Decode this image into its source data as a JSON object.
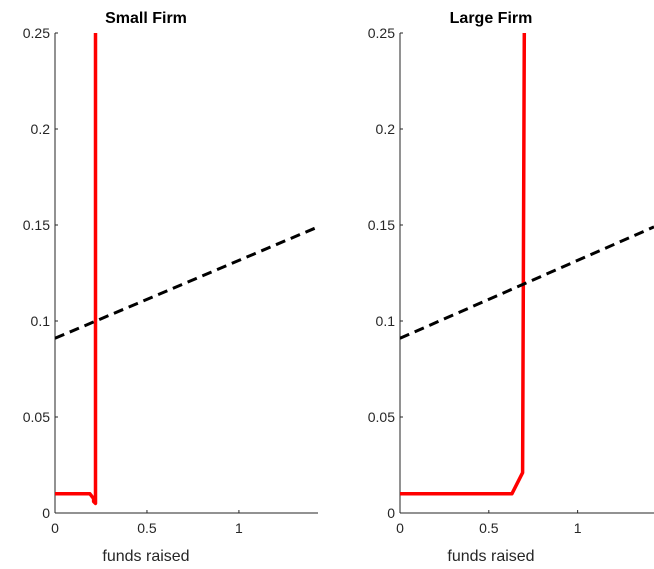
{
  "chart_data": [
    {
      "type": "line",
      "title": "Small Firm",
      "xlabel": "funds raised",
      "ylabel": "",
      "xlim": [
        0,
        1.43
      ],
      "ylim": [
        0,
        0.25
      ],
      "xticks": [
        0,
        0.5,
        1
      ],
      "xtick_labels": [
        "0",
        "0.5",
        "1"
      ],
      "yticks": [
        0,
        0.05,
        0.1,
        0.15,
        0.2,
        0.25
      ],
      "ytick_labels": [
        "0",
        "0.05",
        "0.1",
        "0.15",
        "0.2",
        "0.25"
      ],
      "grid": false,
      "series": [
        {
          "color": "#ff0000",
          "style": "solid",
          "x": [
            0,
            0.19,
            0.21,
            0.21,
            0.22,
            0.22
          ],
          "y": [
            0.01,
            0.01,
            0.0075,
            0.006,
            0.005,
            0.25
          ]
        },
        {
          "color": "#000000",
          "style": "dashed",
          "x": [
            0,
            1.43
          ],
          "y": [
            0.091,
            0.149
          ]
        }
      ]
    },
    {
      "type": "line",
      "title": "Large Firm",
      "xlabel": "funds raised",
      "ylabel": "",
      "xlim": [
        0,
        1.43
      ],
      "ylim": [
        0,
        0.25
      ],
      "xticks": [
        0,
        0.5,
        1
      ],
      "xtick_labels": [
        "0",
        "0.5",
        "1"
      ],
      "yticks": [
        0,
        0.05,
        0.1,
        0.15,
        0.2,
        0.25
      ],
      "ytick_labels": [
        "0",
        "0.05",
        "0.1",
        "0.15",
        "0.2",
        "0.25"
      ],
      "grid": false,
      "series": [
        {
          "color": "#ff0000",
          "style": "solid",
          "x": [
            0,
            0.63,
            0.69,
            0.7
          ],
          "y": [
            0.01,
            0.01,
            0.021,
            0.25
          ]
        },
        {
          "color": "#000000",
          "style": "dashed",
          "x": [
            0,
            1.43
          ],
          "y": [
            0.091,
            0.149
          ]
        }
      ]
    }
  ]
}
